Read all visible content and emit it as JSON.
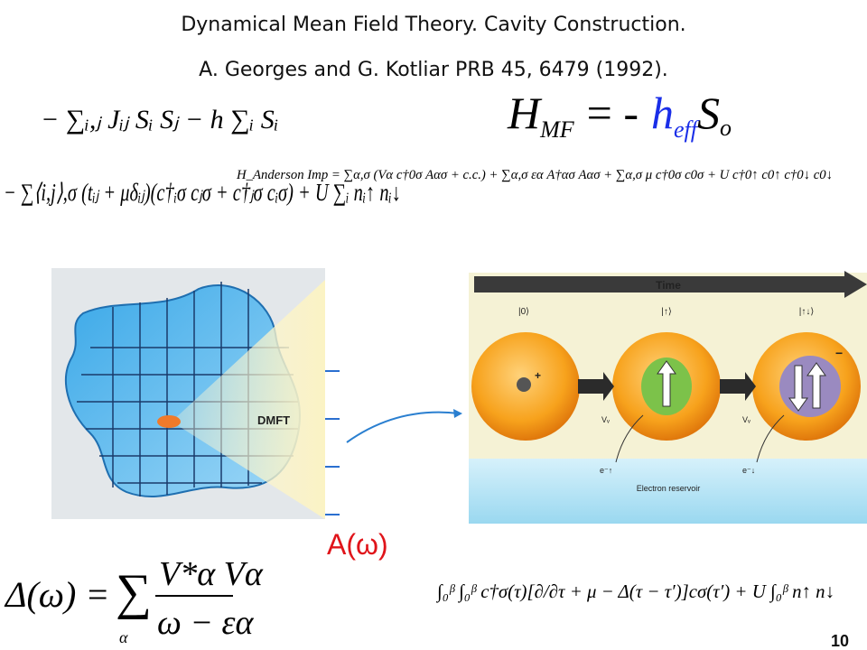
{
  "header": {
    "title_line1": "Dynamical Mean Field Theory. Cavity Construction.",
    "title_line2": "A. Georges and G. Kotliar PRB 45, 6479 (1992)."
  },
  "equations": {
    "heisenberg": "− ∑ᵢ,ⱼ Jᵢⱼ Sᵢ Sⱼ − h ∑ᵢ Sᵢ",
    "mean_field": {
      "lhs": "H",
      "lhs_sub": "MF",
      "eq": "= -",
      "h": "h",
      "h_sub": "eff",
      "s": "S",
      "s_sub": "o"
    },
    "hubbard": "− ∑⟨i,j⟩,σ (tᵢⱼ + μδᵢⱼ)(c†ᵢσ cⱼσ + c†ⱼσ cᵢσ) + U ∑ᵢ nᵢ↑ nᵢ↓",
    "anderson": "H_Anderson Imp = ∑α,σ (Vα c†0σ Aασ + c.c.) + ∑α,σ εα A†ασ Aασ + ∑α,σ μ c†0σ c0σ + U c†0↑ c0↑ c†0↓ c0↓",
    "hybridization": {
      "lhs": "Δ(ω) =",
      "sum": "∑",
      "sum_index": "α",
      "numerator": "V*α Vα",
      "denominator": "ω − εα"
    },
    "action": "∫₀ᵝ ∫₀ᵝ c†σ(τ)[∂/∂τ + μ − Δ(τ − τ′)]cσ(τ′) + U ∫₀ᵝ n↑ n↓"
  },
  "left_figure": {
    "label": "DMFT"
  },
  "spectral_label": "A(ω)",
  "right_figure": {
    "time_label": "Time",
    "states": [
      "|0⟩",
      "|↑⟩",
      "|↑↓⟩"
    ],
    "hopping_labels": [
      "Vᵥ",
      "Vᵥ"
    ],
    "electron_labels": [
      "e⁻↑",
      "e⁻↓"
    ],
    "reservoir_label": "Electron reservoir"
  },
  "page_number": 10
}
